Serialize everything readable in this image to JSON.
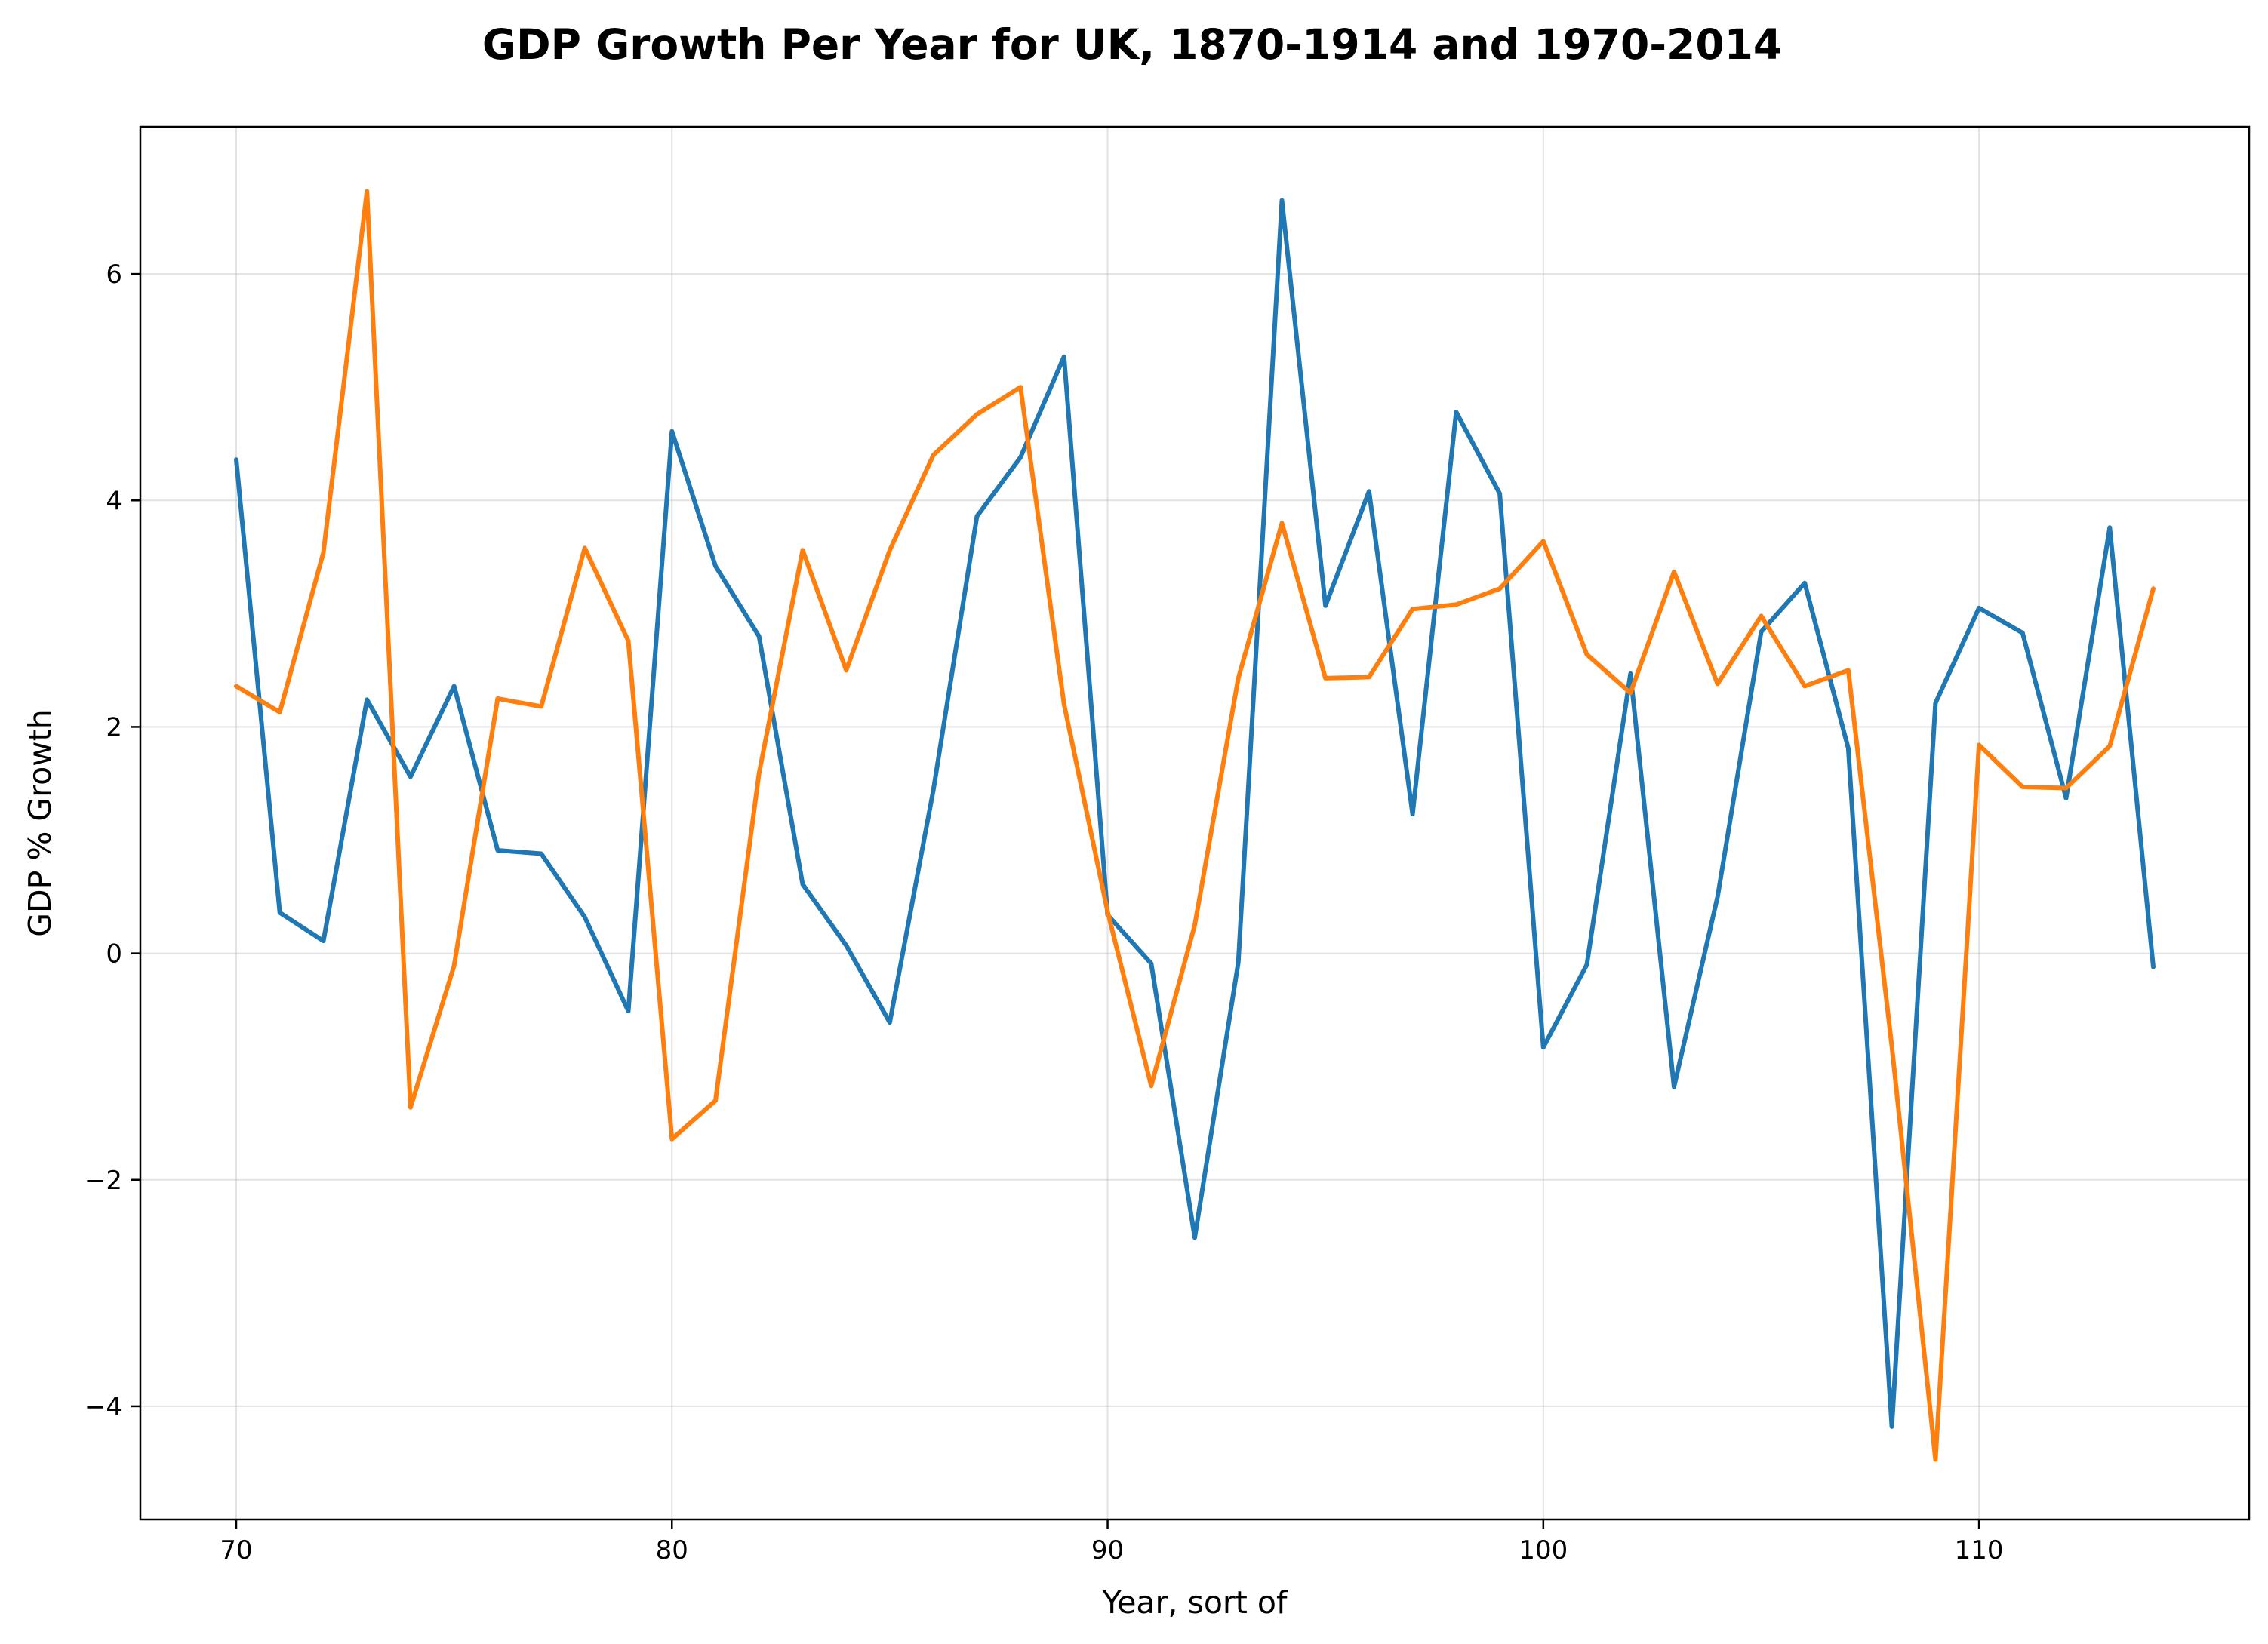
{
  "chart_data": {
    "type": "line",
    "title": "GDP Growth Per Year for UK, 1870-1914 and 1970-2014",
    "xlabel": "Year, sort of",
    "ylabel": "GDP % Growth",
    "xlim": [
      67.8,
      116.2
    ],
    "ylim": [
      -5.0,
      7.3
    ],
    "xticks": [
      70,
      80,
      90,
      100,
      110
    ],
    "xtick_labels": [
      "70",
      "80",
      "90",
      "100",
      "110"
    ],
    "yticks": [
      -4,
      -2,
      0,
      2,
      4,
      6
    ],
    "ytick_labels": [
      "−4",
      "−2",
      "0",
      "2",
      "4",
      "6"
    ],
    "grid": true,
    "x": [
      70,
      71,
      72,
      73,
      74,
      75,
      76,
      77,
      78,
      79,
      80,
      81,
      82,
      83,
      84,
      85,
      86,
      87,
      88,
      89,
      90,
      91,
      92,
      93,
      94,
      95,
      96,
      97,
      98,
      99,
      100,
      101,
      102,
      103,
      104,
      105,
      106,
      107,
      108,
      109,
      110,
      111,
      112,
      113,
      114
    ],
    "series": [
      {
        "color": "#1f77b4",
        "values": [
          4.36,
          0.36,
          0.11,
          2.24,
          1.56,
          2.36,
          0.91,
          0.88,
          0.32,
          -0.51,
          4.61,
          3.42,
          2.8,
          0.61,
          0.07,
          -0.61,
          1.44,
          3.86,
          4.38,
          5.27,
          0.34,
          -0.09,
          -2.51,
          -0.08,
          6.65,
          3.07,
          4.08,
          1.23,
          4.78,
          4.06,
          -0.83,
          -0.1,
          2.47,
          -1.18,
          0.5,
          2.84,
          3.27,
          1.81,
          -4.18,
          2.21,
          3.05,
          2.83,
          1.37,
          3.76,
          -0.12
        ]
      },
      {
        "color": "#ff7f0e",
        "values": [
          2.36,
          2.13,
          3.54,
          6.73,
          -1.36,
          -0.11,
          2.25,
          2.18,
          3.58,
          2.76,
          -1.64,
          -1.3,
          1.59,
          3.56,
          2.5,
          3.56,
          4.4,
          4.76,
          5.0,
          2.2,
          0.37,
          -1.17,
          0.25,
          2.43,
          3.8,
          2.43,
          2.44,
          3.04,
          3.08,
          3.22,
          3.64,
          2.64,
          2.3,
          3.37,
          2.38,
          2.98,
          2.36,
          2.5,
          -0.82,
          -4.47,
          1.84,
          1.47,
          1.46,
          1.83,
          3.22
        ]
      }
    ]
  }
}
